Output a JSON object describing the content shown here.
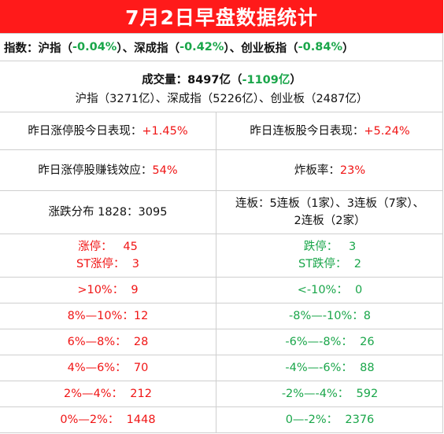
{
  "title": "7月2日早盘数据统计",
  "index_row": {
    "label": "指数：",
    "sh_name": "沪指（",
    "sh_val": "-0.04%",
    "sep1": "）、深成指（",
    "sz_val": "-0.42%",
    "sep2": "）、创业板指（",
    "cyb_val": "-0.84%",
    "end": "）"
  },
  "volume_row": {
    "label": "成交量：",
    "value": "8497亿",
    "open": "（",
    "change": "-1109亿",
    "close": "）",
    "detail": "沪指（3271亿）、深成指（5226亿）、创业板（2487亿）"
  },
  "perf_row": {
    "left_label": "昨日涨停股今日表现：",
    "left_value": "+1.45%",
    "right_label": "昨日连板股今日表现：",
    "right_value": "+5.24%"
  },
  "money_row": {
    "left_label": "昨日涨停股赚钱效应：",
    "left_value": "54%",
    "right_label": "炸板率：",
    "right_value": "23%"
  },
  "dist_row": {
    "left": "涨跌分布 1828：3095",
    "right_line1": "连板：5连板（1家）、3连板（7家）、",
    "right_line2": "2连板（2家）"
  },
  "limit_row": {
    "left_line1": "涨停：   45",
    "left_line2": "ST涨停：  3",
    "right_line1": "跌停：   3",
    "right_line2": "ST跌停：  2"
  },
  "buckets": [
    {
      "up": ">10%：  9",
      "down": "<-10%：  0"
    },
    {
      "up": "8%—10%：12",
      "down": "-8%—-10%：8"
    },
    {
      "up": "6%—8%：  28",
      "down": "-6%—-8%：  26"
    },
    {
      "up": "4%—6%：  70",
      "down": "-4%—-6%：  88"
    },
    {
      "up": "2%—4%：  212",
      "down": "-2%—-4%：  592"
    },
    {
      "up": "0%—2%：  1448",
      "down": "0—-2%：  2376"
    }
  ],
  "colors": {
    "title_bg": "#ff1a1a",
    "up": "#f01515",
    "down": "#1aa64a",
    "grid": "#cfcfcf"
  }
}
